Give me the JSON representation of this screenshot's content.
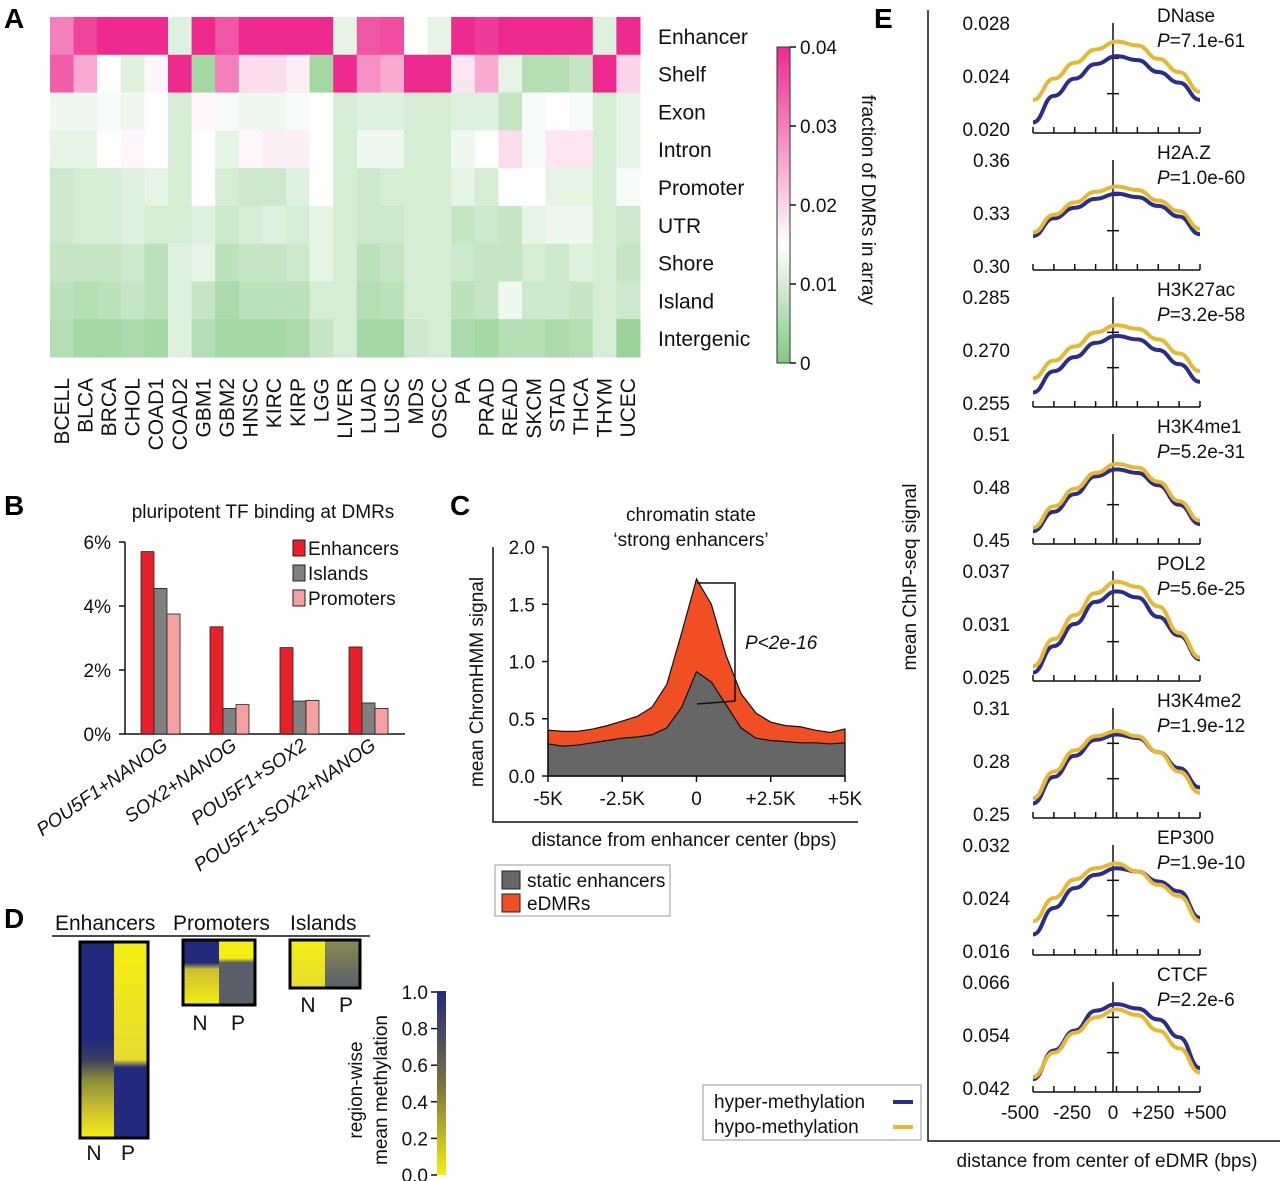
{
  "panels": {
    "a": "A",
    "b": "B",
    "c": "C",
    "d": "D",
    "e": "E"
  },
  "chart_data": [
    {
      "type": "heatmap",
      "panel": "A",
      "rows": [
        "Enhancer",
        "Shelf",
        "Exon",
        "Intron",
        "Promoter",
        "UTR",
        "Shore",
        "Island",
        "Intergenic"
      ],
      "columns": [
        "BCELL",
        "BLCA",
        "BRCA",
        "CHOL",
        "COAD1",
        "COAD2",
        "GBM1",
        "GBM2",
        "HNSC",
        "KIRC",
        "KIRP",
        "LGG",
        "LIVER",
        "LUAD",
        "LUSC",
        "MDS",
        "OSCC",
        "PA",
        "PRAD",
        "READ",
        "SKCM",
        "STAD",
        "THCA",
        "THYM",
        "UCEC"
      ],
      "values": [
        [
          0.03,
          0.037,
          0.04,
          0.04,
          0.04,
          0.011,
          0.04,
          0.035,
          0.04,
          0.04,
          0.04,
          0.04,
          0.012,
          0.035,
          0.036,
          0.015,
          0.012,
          0.04,
          0.038,
          0.04,
          0.04,
          0.04,
          0.04,
          0.011,
          0.04
        ],
        [
          0.034,
          0.025,
          0.015,
          0.011,
          0.016,
          0.04,
          0.004,
          0.03,
          0.019,
          0.019,
          0.017,
          0.004,
          0.04,
          0.028,
          0.025,
          0.04,
          0.04,
          0.018,
          0.025,
          0.012,
          0.006,
          0.006,
          0.008,
          0.04,
          0.02
        ],
        [
          0.013,
          0.013,
          0.014,
          0.013,
          0.015,
          0.01,
          0.016,
          0.014,
          0.013,
          0.013,
          0.014,
          0.015,
          0.01,
          0.011,
          0.011,
          0.01,
          0.01,
          0.011,
          0.011,
          0.008,
          0.014,
          0.015,
          0.014,
          0.01,
          0.012
        ],
        [
          0.012,
          0.012,
          0.015,
          0.016,
          0.015,
          0.01,
          0.015,
          0.012,
          0.016,
          0.017,
          0.017,
          0.015,
          0.01,
          0.013,
          0.013,
          0.01,
          0.01,
          0.013,
          0.015,
          0.019,
          0.014,
          0.018,
          0.018,
          0.01,
          0.012
        ],
        [
          0.009,
          0.01,
          0.01,
          0.011,
          0.012,
          0.01,
          0.015,
          0.01,
          0.009,
          0.009,
          0.011,
          0.015,
          0.01,
          0.009,
          0.01,
          0.01,
          0.01,
          0.012,
          0.01,
          0.015,
          0.015,
          0.012,
          0.012,
          0.01,
          0.014
        ],
        [
          0.009,
          0.01,
          0.01,
          0.011,
          0.01,
          0.01,
          0.011,
          0.009,
          0.01,
          0.011,
          0.01,
          0.012,
          0.01,
          0.009,
          0.009,
          0.01,
          0.01,
          0.008,
          0.009,
          0.008,
          0.012,
          0.013,
          0.013,
          0.01,
          0.009
        ],
        [
          0.008,
          0.008,
          0.008,
          0.009,
          0.007,
          0.011,
          0.012,
          0.007,
          0.008,
          0.008,
          0.009,
          0.012,
          0.01,
          0.007,
          0.008,
          0.01,
          0.01,
          0.009,
          0.008,
          0.008,
          0.01,
          0.009,
          0.011,
          0.01,
          0.008
        ],
        [
          0.007,
          0.006,
          0.007,
          0.008,
          0.007,
          0.011,
          0.008,
          0.005,
          0.007,
          0.007,
          0.007,
          0.01,
          0.01,
          0.006,
          0.007,
          0.01,
          0.01,
          0.007,
          0.008,
          0.013,
          0.009,
          0.009,
          0.008,
          0.01,
          0.009
        ],
        [
          0.006,
          0.004,
          0.004,
          0.005,
          0.004,
          0.011,
          0.006,
          0.004,
          0.004,
          0.004,
          0.005,
          0.008,
          0.01,
          0.004,
          0.004,
          0.009,
          0.01,
          0.005,
          0.004,
          0.006,
          0.006,
          0.005,
          0.006,
          0.01,
          0.003
        ]
      ],
      "colorbar": {
        "label": "fraction of DMRs in array",
        "ticks": [
          "0",
          "0.01",
          "0.02",
          "0.03",
          "0.04"
        ],
        "range": [
          0,
          0.04
        ],
        "low_color": "#82c882",
        "mid_color": "#ffffff",
        "high_color": "#ee2a8f"
      }
    },
    {
      "type": "bar",
      "panel": "B",
      "title": "pluripotent TF binding at DMRs",
      "categories": [
        "POU5F1+NANOG",
        "SOX2+NANOG",
        "POU5F1+SOX2",
        "POU5F1+SOX2+NANOG"
      ],
      "series": [
        {
          "name": "Enhancers",
          "color": "#e8202a",
          "values": [
            5.7,
            3.35,
            2.7,
            2.72
          ]
        },
        {
          "name": "Islands",
          "color": "#808080",
          "values": [
            4.55,
            0.8,
            1.03,
            0.97
          ]
        },
        {
          "name": "Promoters",
          "color": "#f4a0a0",
          "values": [
            3.75,
            0.92,
            1.05,
            0.8
          ]
        }
      ],
      "yticks": [
        "0%",
        "2%",
        "4%",
        "6%"
      ],
      "ylim": [
        0,
        6
      ]
    },
    {
      "type": "area",
      "panel": "C",
      "title_line1": "chromatin state",
      "title_line2": "‘strong enhancers’",
      "xlabel": "distance from enhancer center (bps)",
      "ylabel": "mean ChromHMM signal",
      "x": [
        -5000,
        -4500,
        -4000,
        -3500,
        -3000,
        -2500,
        -2000,
        -1500,
        -1000,
        -500,
        0,
        500,
        1000,
        1500,
        2000,
        2500,
        3000,
        3500,
        4000,
        4500,
        5000
      ],
      "series": [
        {
          "name": "eDMRs",
          "color": "#f04e23",
          "values": [
            0.4,
            0.39,
            0.39,
            0.41,
            0.44,
            0.48,
            0.52,
            0.6,
            0.8,
            1.25,
            1.72,
            1.5,
            1.05,
            0.72,
            0.55,
            0.47,
            0.44,
            0.43,
            0.4,
            0.38,
            0.41
          ]
        },
        {
          "name": "static enhancers",
          "color": "#666666",
          "values": [
            0.28,
            0.26,
            0.27,
            0.29,
            0.31,
            0.33,
            0.34,
            0.36,
            0.42,
            0.6,
            0.91,
            0.82,
            0.62,
            0.42,
            0.33,
            0.31,
            0.3,
            0.29,
            0.29,
            0.28,
            0.29
          ]
        }
      ],
      "xticks": [
        "-5K",
        "-2.5K",
        "0",
        "+2.5K",
        "+5K"
      ],
      "yticks": [
        "0.0",
        "0.5",
        "1.0",
        "1.5",
        "2.0"
      ],
      "xlim": [
        -5000,
        5000
      ],
      "ylim": [
        0,
        2
      ],
      "annotation": "P<2e-16",
      "legend": [
        "static enhancers",
        "eDMRs"
      ]
    },
    {
      "type": "heatmap",
      "panel": "D",
      "groups": [
        "Enhancers",
        "Promoters",
        "Islands"
      ],
      "column_labels": [
        "N",
        "P"
      ],
      "colorbar": {
        "label_line1": "region-wise",
        "label_line2": "mean methylation",
        "ticks": [
          "0.0",
          "0.2",
          "0.4",
          "0.6",
          "0.8",
          "1.0"
        ],
        "low_color": "#f5ee10",
        "high_color": "#232a7d"
      }
    },
    {
      "type": "line",
      "panel": "E",
      "ylabel": "mean ChIP-seq signal",
      "xlabel": "distance from center of eDMR (bps)",
      "xticks": [
        "-500",
        "-250",
        "0",
        "+250",
        "+500"
      ],
      "x": [
        -500,
        -375,
        -250,
        -125,
        0,
        125,
        250,
        375,
        500
      ],
      "legend": [
        {
          "name": "hyper-methylation",
          "color": "#2b2d8c"
        },
        {
          "name": "hypo-methylation",
          "color": "#e8b830"
        }
      ],
      "subplots": [
        {
          "name": "DNase",
          "p": "=7.1e-61",
          "yticks": [
            "0.020",
            "0.024",
            "0.028"
          ],
          "ylim": [
            0.02,
            0.028
          ],
          "hyper": [
            0.0205,
            0.0225,
            0.0238,
            0.0249,
            0.0255,
            0.0252,
            0.0243,
            0.0235,
            0.0222
          ],
          "hypo": [
            0.0222,
            0.0238,
            0.025,
            0.026,
            0.0266,
            0.0263,
            0.0253,
            0.0243,
            0.0228
          ]
        },
        {
          "name": "H2A.Z",
          "p": "=1.0e-60",
          "yticks": [
            "0.30",
            "0.33",
            "0.36"
          ],
          "ylim": [
            0.3,
            0.36
          ],
          "hyper": [
            0.317,
            0.327,
            0.333,
            0.338,
            0.341,
            0.339,
            0.334,
            0.328,
            0.318
          ],
          "hypo": [
            0.319,
            0.329,
            0.336,
            0.342,
            0.345,
            0.343,
            0.337,
            0.331,
            0.321
          ]
        },
        {
          "name": "H3K27ac",
          "p": "=3.2e-58",
          "yticks": [
            "0.255",
            "0.270",
            "0.285"
          ],
          "ylim": [
            0.255,
            0.285
          ],
          "hyper": [
            0.258,
            0.264,
            0.268,
            0.272,
            0.274,
            0.273,
            0.27,
            0.266,
            0.261
          ],
          "hypo": [
            0.262,
            0.267,
            0.271,
            0.275,
            0.277,
            0.276,
            0.273,
            0.269,
            0.264
          ]
        },
        {
          "name": "H3K4me1",
          "p": "=5.2e-31",
          "yticks": [
            "0.45",
            "0.48",
            "0.51"
          ],
          "ylim": [
            0.45,
            0.51
          ],
          "hyper": [
            0.455,
            0.466,
            0.476,
            0.486,
            0.49,
            0.488,
            0.481,
            0.47,
            0.459
          ],
          "hypo": [
            0.457,
            0.469,
            0.479,
            0.488,
            0.493,
            0.491,
            0.483,
            0.472,
            0.461
          ]
        },
        {
          "name": "POL2",
          "p": "=5.6e-25",
          "yticks": [
            "0.025",
            "0.031",
            "0.037"
          ],
          "ylim": [
            0.025,
            0.037
          ],
          "hyper": [
            0.0255,
            0.0285,
            0.031,
            0.0335,
            0.0347,
            0.034,
            0.0318,
            0.0297,
            0.027
          ],
          "hypo": [
            0.0262,
            0.0293,
            0.032,
            0.0345,
            0.0358,
            0.0352,
            0.033,
            0.03,
            0.0272
          ]
        },
        {
          "name": "H3K4me2",
          "p": "=1.9e-12",
          "yticks": [
            "0.25",
            "0.28",
            "0.31"
          ],
          "ylim": [
            0.25,
            0.31
          ],
          "hyper": [
            0.256,
            0.271,
            0.283,
            0.292,
            0.295,
            0.293,
            0.285,
            0.276,
            0.265
          ],
          "hypo": [
            0.259,
            0.274,
            0.286,
            0.294,
            0.297,
            0.294,
            0.285,
            0.274,
            0.262
          ]
        },
        {
          "name": "EP300",
          "p": "=1.9e-10",
          "yticks": [
            "0.016",
            "0.024",
            "0.032"
          ],
          "ylim": [
            0.016,
            0.032
          ],
          "hyper": [
            0.0185,
            0.0225,
            0.0255,
            0.0275,
            0.0285,
            0.028,
            0.0265,
            0.025,
            0.021
          ],
          "hypo": [
            0.0205,
            0.024,
            0.0268,
            0.0285,
            0.0292,
            0.028,
            0.026,
            0.0243,
            0.0205
          ]
        },
        {
          "name": "CTCF",
          "p": "=2.2e-6",
          "yticks": [
            "0.042",
            "0.054",
            "0.066"
          ],
          "ylim": [
            0.042,
            0.066
          ],
          "hyper": [
            0.044,
            0.0505,
            0.055,
            0.0595,
            0.061,
            0.06,
            0.0575,
            0.0535,
            0.0465
          ],
          "hypo": [
            0.0445,
            0.05,
            0.0545,
            0.058,
            0.0598,
            0.0585,
            0.055,
            0.051,
            0.0455
          ]
        }
      ]
    }
  ]
}
